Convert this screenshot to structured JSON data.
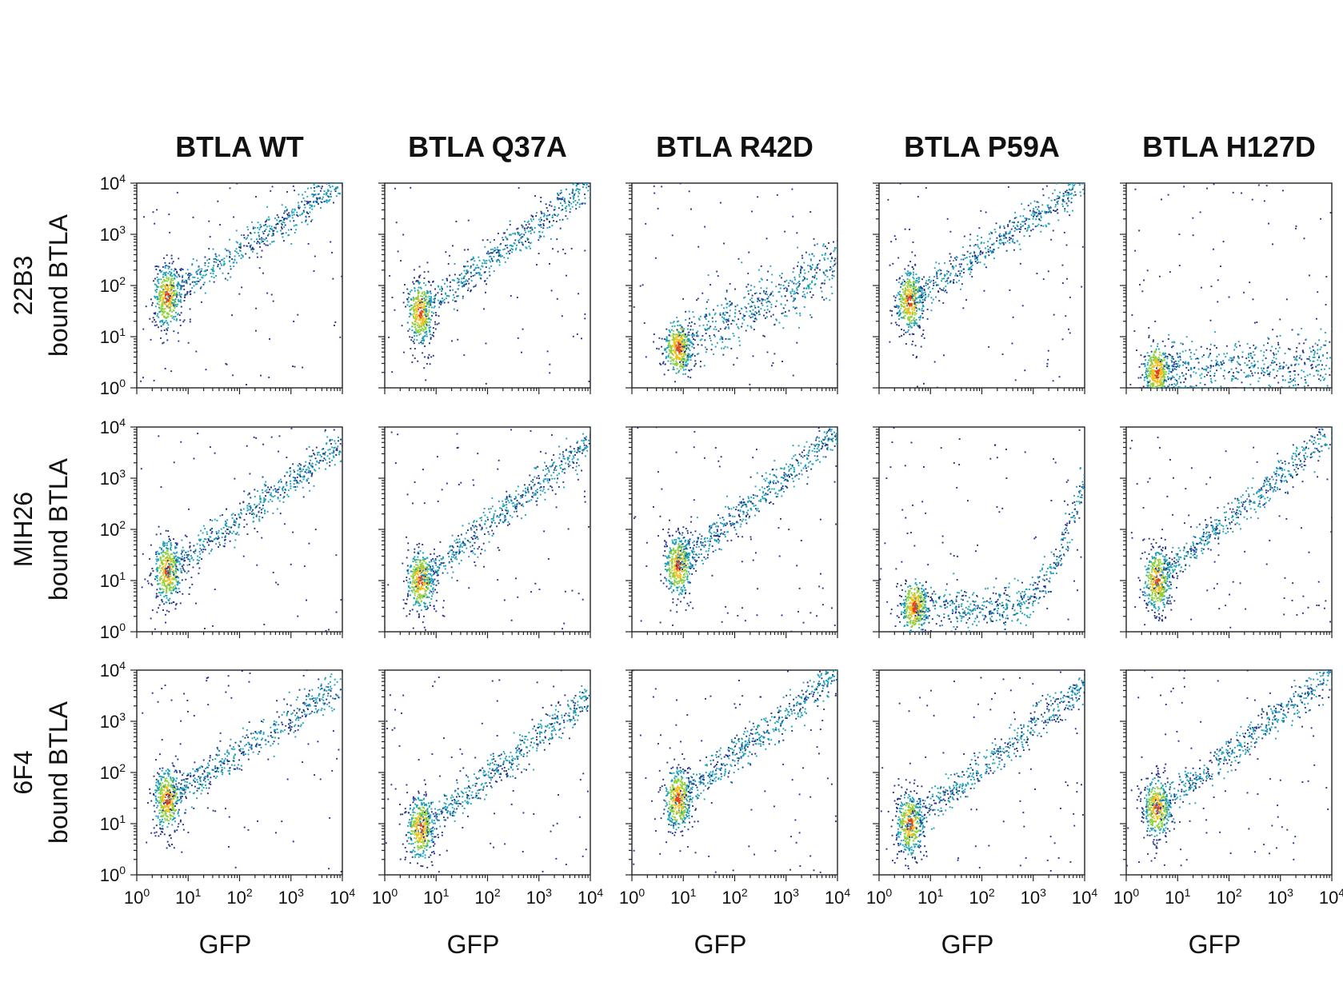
{
  "figure": {
    "column_titles": [
      "BTLA WT",
      "BTLA Q37A",
      "BTLA R42D",
      "BTLA P59A",
      "BTLA H127D"
    ],
    "row_labels": [
      {
        "name": "22B3",
        "unit": "bound BTLA"
      },
      {
        "name": "MIH26",
        "unit": "bound BTLA"
      },
      {
        "name": "6F4",
        "unit": "bound BTLA"
      }
    ],
    "x_axis_title": "GFP",
    "tick_base": "10",
    "tick_exponents": [
      "0",
      "1",
      "2",
      "3",
      "4"
    ]
  },
  "colors": {
    "density_low": "#1f2f8a",
    "density_mid": "#1aa0b8",
    "density_midhigh": "#8fcf3c",
    "density_high": "#f0c020",
    "density_peak": "#e0401a"
  },
  "chart_data": {
    "type": "scatter",
    "subtype": "flow-cytometry density plot grid",
    "xscale": "log",
    "yscale": "log",
    "xlim": [
      1,
      10000
    ],
    "ylim": [
      1,
      10000
    ],
    "xlabel": "GFP",
    "grid": false,
    "panels": [
      {
        "row": "22B3",
        "column": "BTLA WT",
        "pattern": "diagonal",
        "population_center": [
          4,
          60
        ],
        "trend_end": [
          10000,
          10000
        ]
      },
      {
        "row": "22B3",
        "column": "BTLA Q37A",
        "pattern": "diagonal",
        "population_center": [
          5,
          30
        ],
        "trend_end": [
          10000,
          10000
        ]
      },
      {
        "row": "22B3",
        "column": "BTLA R42D",
        "pattern": "flat-low",
        "population_center": [
          8,
          6
        ],
        "trend_end": [
          10000,
          300
        ]
      },
      {
        "row": "22B3",
        "column": "BTLA P59A",
        "pattern": "diagonal",
        "population_center": [
          4,
          50
        ],
        "trend_end": [
          10000,
          10000
        ]
      },
      {
        "row": "22B3",
        "column": "BTLA H127D",
        "pattern": "flat-low",
        "population_center": [
          4,
          2
        ],
        "trend_end": [
          10000,
          3
        ]
      },
      {
        "row": "MIH26",
        "column": "BTLA WT",
        "pattern": "diagonal",
        "population_center": [
          4,
          15
        ],
        "trend_end": [
          10000,
          5000
        ]
      },
      {
        "row": "MIH26",
        "column": "BTLA Q37A",
        "pattern": "diagonal",
        "population_center": [
          5,
          10
        ],
        "trend_end": [
          10000,
          5000
        ]
      },
      {
        "row": "MIH26",
        "column": "BTLA R42D",
        "pattern": "diagonal",
        "population_center": [
          8,
          20
        ],
        "trend_end": [
          10000,
          8000
        ]
      },
      {
        "row": "MIH26",
        "column": "BTLA P59A",
        "pattern": "flat-then-rise",
        "population_center": [
          5,
          3
        ],
        "trend_end": [
          10000,
          1000
        ]
      },
      {
        "row": "MIH26",
        "column": "BTLA H127D",
        "pattern": "diagonal",
        "population_center": [
          4,
          10
        ],
        "trend_end": [
          10000,
          8000
        ]
      },
      {
        "row": "6F4",
        "column": "BTLA WT",
        "pattern": "diagonal",
        "population_center": [
          4,
          30
        ],
        "trend_end": [
          10000,
          5000
        ]
      },
      {
        "row": "6F4",
        "column": "BTLA Q37A",
        "pattern": "diagonal",
        "population_center": [
          5,
          8
        ],
        "trend_end": [
          10000,
          3000
        ]
      },
      {
        "row": "6F4",
        "column": "BTLA R42D",
        "pattern": "diagonal",
        "population_center": [
          8,
          30
        ],
        "trend_end": [
          10000,
          8000
        ]
      },
      {
        "row": "6F4",
        "column": "BTLA P59A",
        "pattern": "diagonal",
        "population_center": [
          4,
          10
        ],
        "trend_end": [
          10000,
          5000
        ]
      },
      {
        "row": "6F4",
        "column": "BTLA H127D",
        "pattern": "diagonal",
        "population_center": [
          4,
          20
        ],
        "trend_end": [
          10000,
          8000
        ]
      }
    ]
  }
}
